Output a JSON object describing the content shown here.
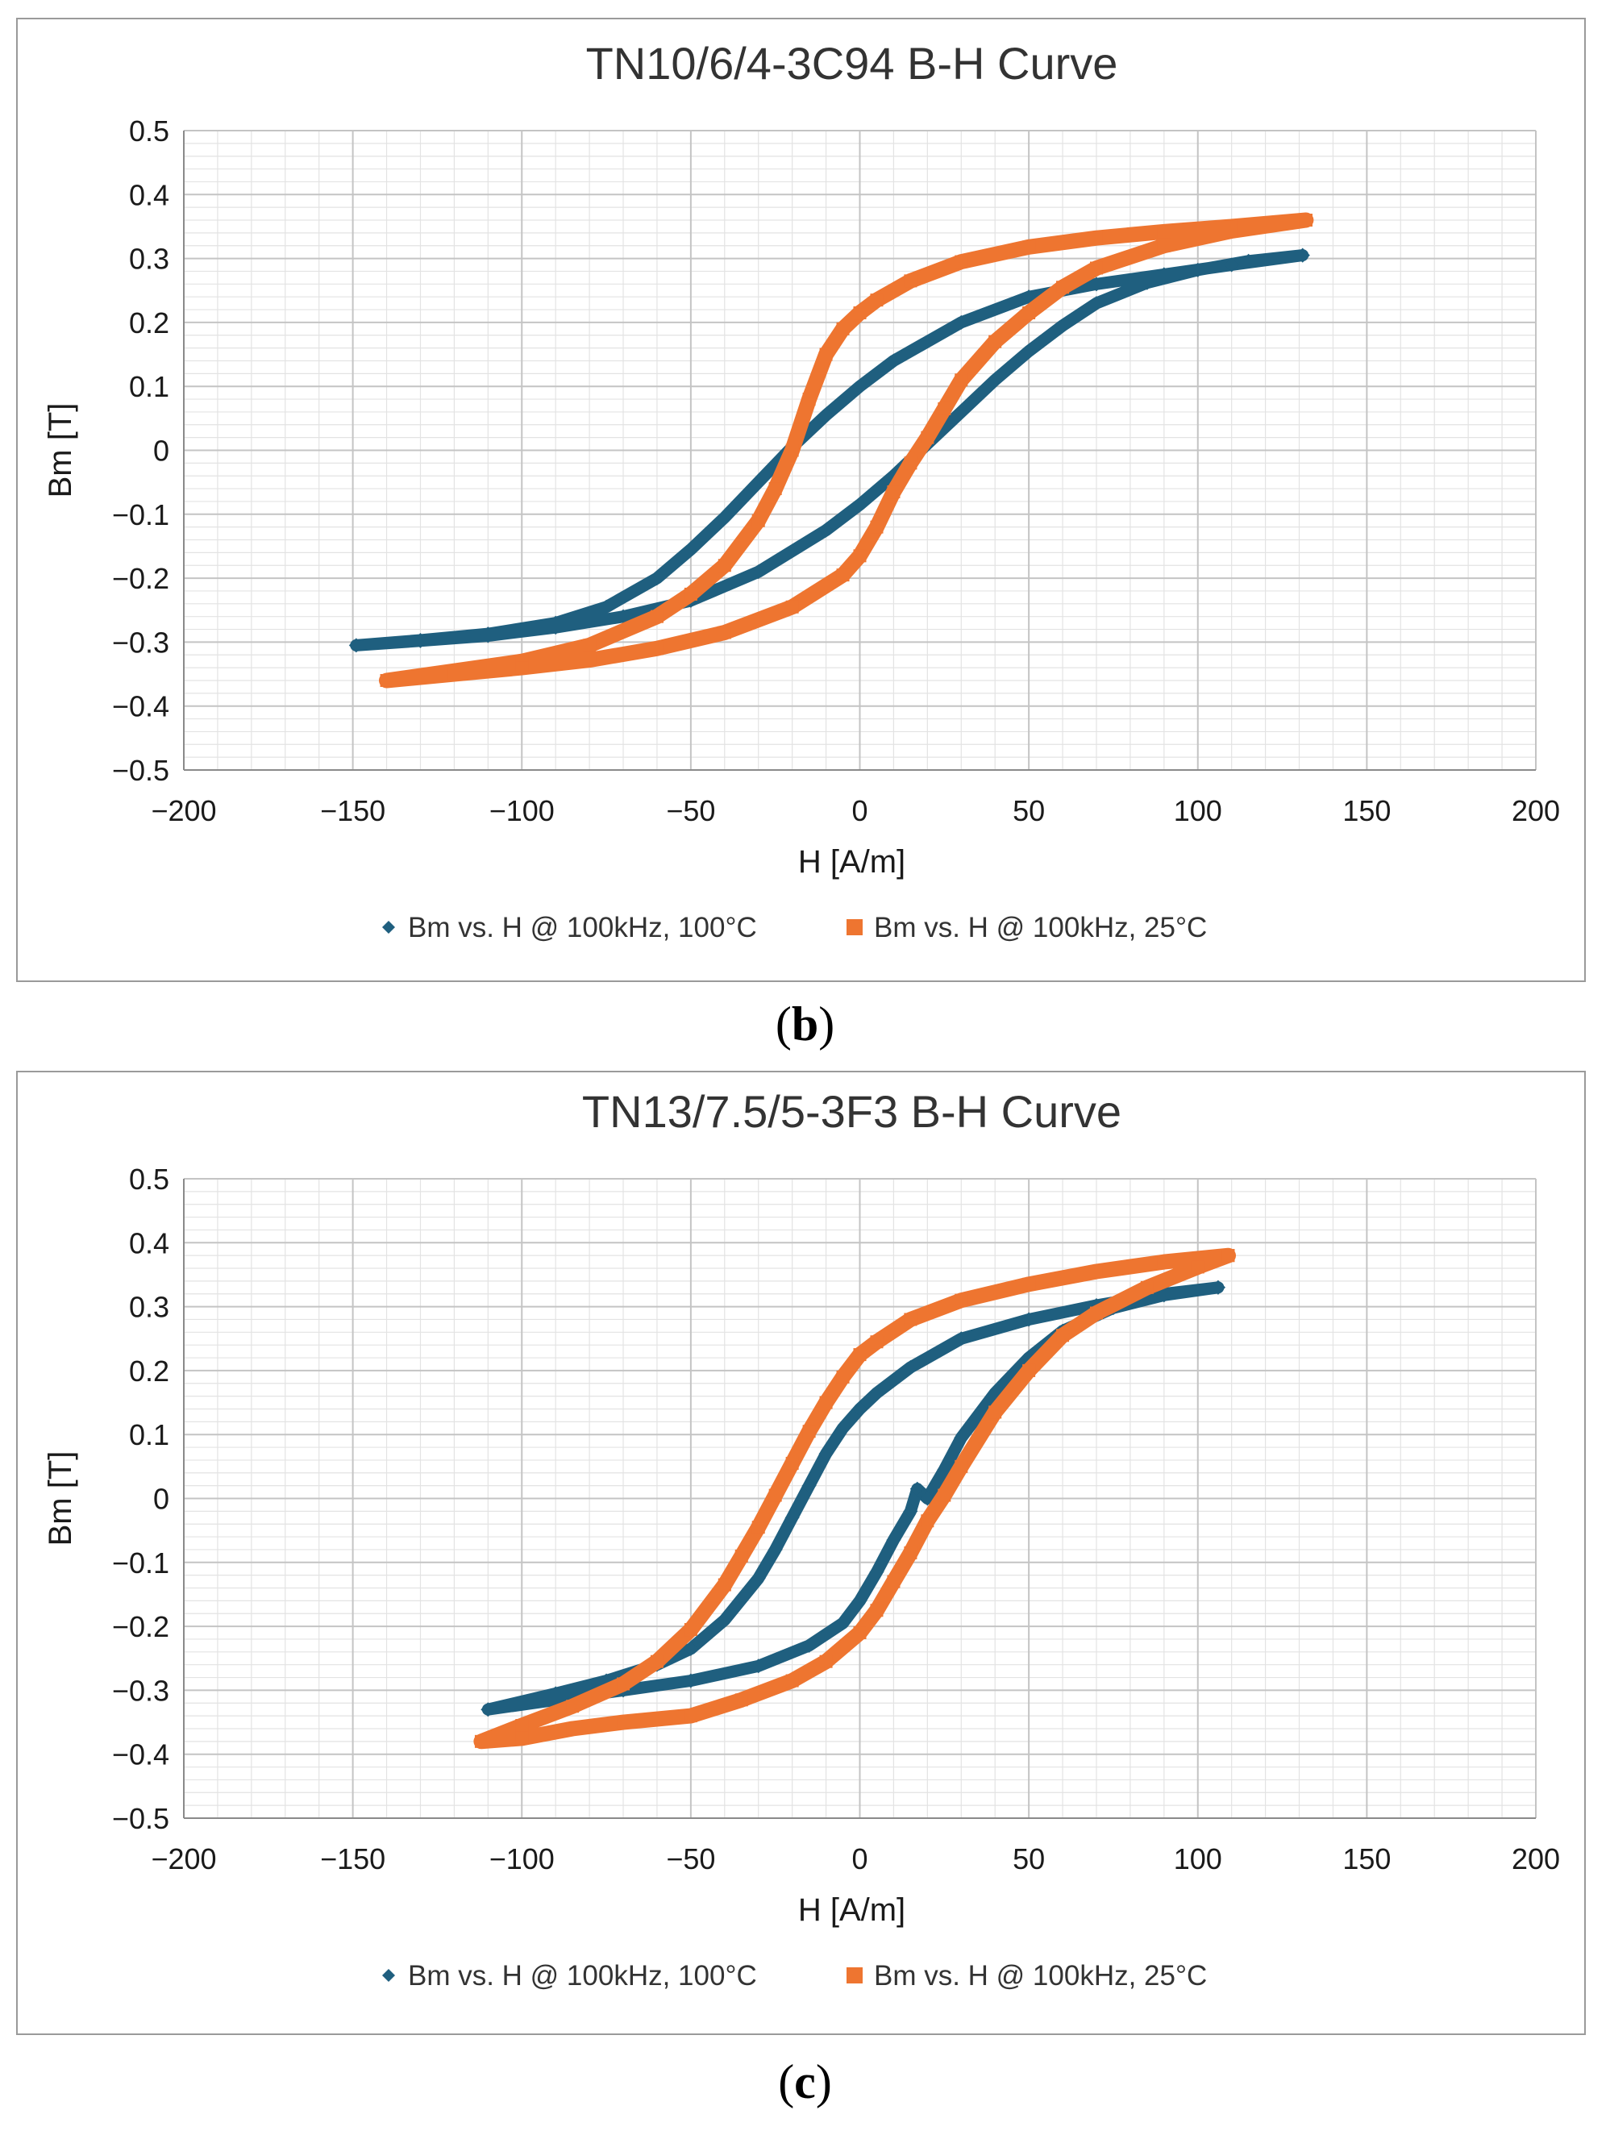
{
  "figure": {
    "panel_labels": [
      "b",
      "c"
    ]
  },
  "chart_data": [
    {
      "type": "scatter",
      "panel": "b",
      "title": "TN10/6/4-3C94 B-H Curve",
      "xlabel": "H [A/m]",
      "ylabel": "Bm [T]",
      "xlim": [
        -200,
        200
      ],
      "ylim": [
        -0.5,
        0.5
      ],
      "x_ticks": [
        -200,
        -150,
        -100,
        -50,
        0,
        50,
        100,
        150,
        200
      ],
      "y_ticks": [
        -0.5,
        -0.4,
        -0.3,
        -0.2,
        -0.1,
        0,
        0.1,
        0.2,
        0.3,
        0.4,
        0.5
      ],
      "x_tick_labels": [
        "−200",
        "−150",
        "−100",
        "−50",
        "0",
        "50",
        "100",
        "150",
        "200"
      ],
      "y_tick_labels": [
        "−0.5",
        "−0.4",
        "−0.3",
        "−0.2",
        "−0.1",
        "0",
        "0.1",
        "0.2",
        "0.3",
        "0.4",
        "0.5"
      ],
      "grid": true,
      "legend_position": "bottom",
      "series": [
        {
          "name": "Bm vs. H @ 100kHz, 100°C",
          "color": "#1f5f7f",
          "marker": "diamond",
          "x": [
            131,
            110,
            90,
            70,
            50,
            30,
            10,
            0,
            -10,
            -20,
            -30,
            -40,
            -50,
            -60,
            -75,
            -90,
            -110,
            -130,
            -149,
            -130,
            -110,
            -90,
            -70,
            -50,
            -30,
            -10,
            0,
            10,
            20,
            30,
            40,
            50,
            60,
            70,
            85,
            100,
            115,
            131
          ],
          "y": [
            0.305,
            0.29,
            0.275,
            0.26,
            0.24,
            0.2,
            0.14,
            0.1,
            0.055,
            0.005,
            -0.05,
            -0.105,
            -0.155,
            -0.2,
            -0.245,
            -0.27,
            -0.287,
            -0.297,
            -0.305,
            -0.298,
            -0.29,
            -0.277,
            -0.26,
            -0.235,
            -0.19,
            -0.125,
            -0.085,
            -0.04,
            0.01,
            0.06,
            0.11,
            0.155,
            0.195,
            0.23,
            0.262,
            0.282,
            0.296,
            0.305
          ]
        },
        {
          "name": "Bm vs. H @ 100kHz, 25°C",
          "color": "#ee7530",
          "marker": "square",
          "x": [
            132,
            110,
            90,
            70,
            50,
            30,
            15,
            5,
            0,
            -5,
            -10,
            -15,
            -20,
            -25,
            -30,
            -40,
            -50,
            -60,
            -80,
            -100,
            -120,
            -140,
            -120,
            -100,
            -80,
            -60,
            -40,
            -20,
            -5,
            0,
            5,
            10,
            15,
            20,
            25,
            30,
            40,
            50,
            60,
            70,
            90,
            110,
            132
          ],
          "y": [
            0.36,
            0.35,
            0.342,
            0.332,
            0.318,
            0.295,
            0.265,
            0.235,
            0.215,
            0.19,
            0.15,
            0.08,
            0.0,
            -0.06,
            -0.11,
            -0.18,
            -0.225,
            -0.26,
            -0.305,
            -0.33,
            -0.345,
            -0.36,
            -0.35,
            -0.34,
            -0.328,
            -0.31,
            -0.285,
            -0.245,
            -0.195,
            -0.165,
            -0.12,
            -0.065,
            -0.02,
            0.02,
            0.065,
            0.11,
            0.17,
            0.215,
            0.255,
            0.285,
            0.32,
            0.343,
            0.36
          ]
        }
      ]
    },
    {
      "type": "scatter",
      "panel": "c",
      "title": "TN13/7.5/5-3F3 B-H Curve",
      "xlabel": "H [A/m]",
      "ylabel": "Bm [T]",
      "xlim": [
        -200,
        200
      ],
      "ylim": [
        -0.5,
        0.5
      ],
      "x_ticks": [
        -200,
        -150,
        -100,
        -50,
        0,
        50,
        100,
        150,
        200
      ],
      "y_ticks": [
        -0.5,
        -0.4,
        -0.3,
        -0.2,
        -0.1,
        0,
        0.1,
        0.2,
        0.3,
        0.4,
        0.5
      ],
      "x_tick_labels": [
        "−200",
        "−150",
        "−100",
        "−50",
        "0",
        "50",
        "100",
        "150",
        "200"
      ],
      "y_tick_labels": [
        "−0.5",
        "−0.4",
        "−0.3",
        "−0.2",
        "−0.1",
        "0",
        "0.1",
        "0.2",
        "0.3",
        "0.4",
        "0.5"
      ],
      "grid": true,
      "legend_position": "bottom",
      "series": [
        {
          "name": "Bm vs. H @ 100kHz, 100°C",
          "color": "#1f5f7f",
          "marker": "diamond",
          "x": [
            106,
            90,
            70,
            50,
            30,
            15,
            5,
            0,
            -5,
            -10,
            -15,
            -20,
            -25,
            -30,
            -40,
            -50,
            -60,
            -75,
            -90,
            -110,
            -90,
            -70,
            -50,
            -30,
            -15,
            -5,
            0,
            5,
            10,
            15,
            17,
            19,
            20,
            25,
            30,
            40,
            50,
            60,
            75,
            90,
            106
          ],
          "y": [
            0.33,
            0.32,
            0.302,
            0.28,
            0.25,
            0.205,
            0.165,
            0.14,
            0.11,
            0.07,
            0.02,
            -0.03,
            -0.08,
            -0.125,
            -0.19,
            -0.235,
            -0.26,
            -0.285,
            -0.305,
            -0.33,
            -0.315,
            -0.3,
            -0.285,
            -0.262,
            -0.23,
            -0.195,
            -0.16,
            -0.115,
            -0.065,
            -0.02,
            0.015,
            0.005,
            0.0,
            0.045,
            0.095,
            0.165,
            0.22,
            0.262,
            0.298,
            0.318,
            0.33
          ]
        },
        {
          "name": "Bm vs. H @ 100kHz, 25°C",
          "color": "#ee7530",
          "marker": "square",
          "x": [
            109,
            90,
            70,
            50,
            30,
            15,
            5,
            0,
            -5,
            -10,
            -15,
            -20,
            -25,
            -30,
            -35,
            -40,
            -50,
            -60,
            -70,
            -85,
            -100,
            -112,
            -100,
            -85,
            -70,
            -50,
            -35,
            -20,
            -10,
            0,
            5,
            10,
            15,
            20,
            25,
            30,
            40,
            50,
            60,
            70,
            85,
            100,
            109
          ],
          "y": [
            0.38,
            0.37,
            0.355,
            0.335,
            0.31,
            0.28,
            0.245,
            0.225,
            0.19,
            0.15,
            0.105,
            0.055,
            0.005,
            -0.045,
            -0.09,
            -0.135,
            -0.205,
            -0.255,
            -0.29,
            -0.325,
            -0.355,
            -0.38,
            -0.375,
            -0.36,
            -0.35,
            -0.34,
            -0.315,
            -0.285,
            -0.255,
            -0.21,
            -0.175,
            -0.13,
            -0.085,
            -0.035,
            0.005,
            0.05,
            0.135,
            0.2,
            0.255,
            0.29,
            0.33,
            0.362,
            0.38
          ]
        }
      ]
    }
  ]
}
